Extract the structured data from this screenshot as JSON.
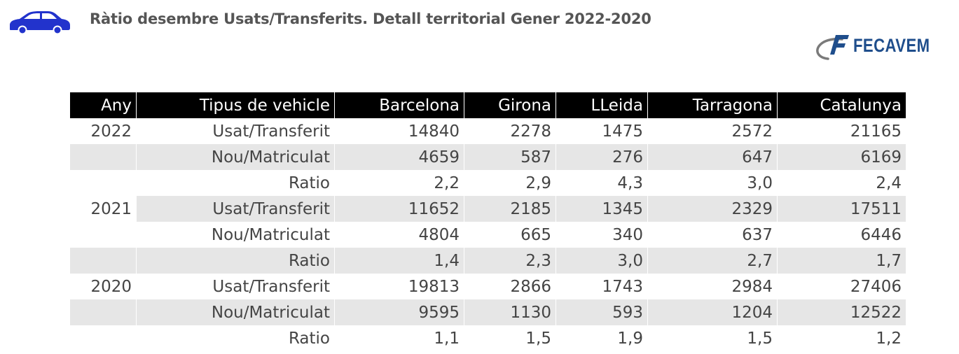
{
  "header": {
    "title": "Ràtio desembre Usats/Transferits. Detall territorial Gener 2022-2020",
    "logo_text": "FECAVEM",
    "car_icon": "car-icon",
    "accent_color": "#2233cc"
  },
  "table": {
    "columns": [
      "Any",
      "Tipus de vehicle",
      "Barcelona",
      "Girona",
      "LLeida",
      "Tarragona",
      "Catalunya"
    ],
    "rows": [
      {
        "year": "2022",
        "type": "Usat/Transferit",
        "values": [
          "14840",
          "2278",
          "1475",
          "2572",
          "21165"
        ]
      },
      {
        "year": "",
        "type": "Nou/Matriculat",
        "values": [
          "4659",
          "587",
          "276",
          "647",
          "6169"
        ]
      },
      {
        "year": "",
        "type": "Ratio",
        "values": [
          "2,2",
          "2,9",
          "4,3",
          "3,0",
          "2,4"
        ]
      },
      {
        "year": "2021",
        "type": "Usat/Transferit",
        "values": [
          "11652",
          "2185",
          "1345",
          "2329",
          "17511"
        ]
      },
      {
        "year": "",
        "type": "Nou/Matriculat",
        "values": [
          "4804",
          "665",
          "340",
          "637",
          "6446"
        ]
      },
      {
        "year": "",
        "type": "Ratio",
        "values": [
          "1,4",
          "2,3",
          "3,0",
          "2,7",
          "1,7"
        ]
      },
      {
        "year": "2020",
        "type": "Usat/Transferit",
        "values": [
          "19813",
          "2866",
          "1743",
          "2984",
          "27406"
        ]
      },
      {
        "year": "",
        "type": "Nou/Matriculat",
        "values": [
          "9595",
          "1130",
          "593",
          "1204",
          "12522"
        ]
      },
      {
        "year": "",
        "type": "Ratio",
        "values": [
          "1,1",
          "1,5",
          "1,9",
          "1,5",
          "1,2"
        ]
      }
    ]
  }
}
